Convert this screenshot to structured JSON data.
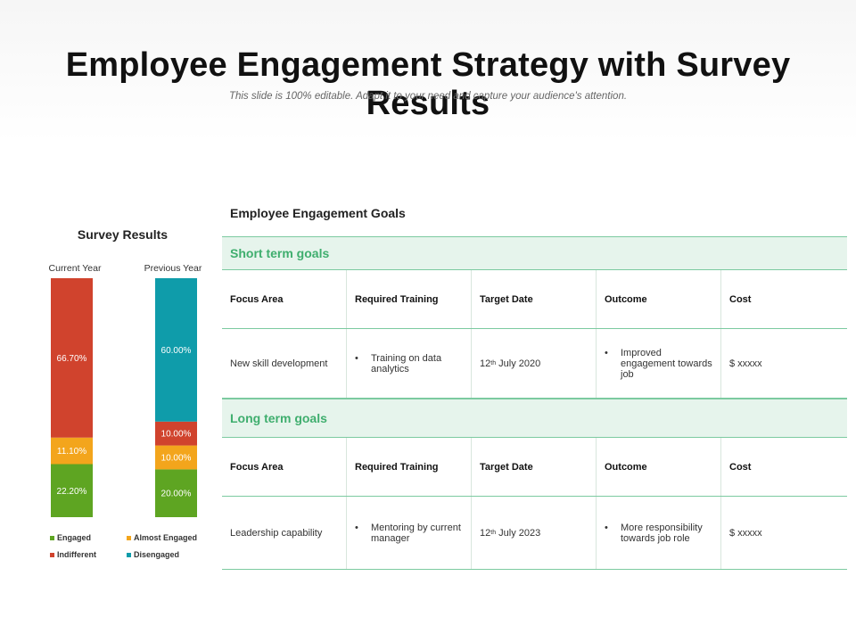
{
  "header": {
    "title": "Employee Engagement Strategy with Survey Results",
    "subtitle": "This slide is 100% editable. Adapt it to your need and capture your audience's attention."
  },
  "chart_data": {
    "type": "bar",
    "stacked": true,
    "normalized": true,
    "title": "Survey Results",
    "categories": [
      "Current Year",
      "Previous Year"
    ],
    "series": [
      {
        "name": "Engaged",
        "color": "#5ea522",
        "values": [
          22.2,
          20.0
        ],
        "labels": [
          "22.20%",
          "20.00%"
        ]
      },
      {
        "name": "Almost Engaged",
        "color": "#f3a51c",
        "values": [
          11.1,
          10.0
        ],
        "labels": [
          "11.10%",
          "10.00%"
        ]
      },
      {
        "name": "Indifferent",
        "color": "#d0432d",
        "values": [
          66.7,
          10.0
        ],
        "labels": [
          "66.70%",
          "10.00%"
        ]
      },
      {
        "name": "Disengaged",
        "color": "#0f9caa",
        "values": [
          0,
          60.0
        ],
        "labels": [
          "",
          "60.00%"
        ]
      }
    ],
    "ylim": [
      0,
      100
    ],
    "legend_position": "bottom"
  },
  "goals": {
    "heading": "Employee Engagement Goals",
    "columns": [
      "Focus Area",
      "Required Training",
      "Target Date",
      "Outcome",
      "Cost"
    ],
    "short_term": {
      "label": "Short term goals",
      "row": {
        "focus": "New skill development",
        "training": "Training on data analytics",
        "date_day": "12",
        "date_suffix": "th",
        "date_rest": " July 2020",
        "outcome": "Improved engagement towards job",
        "cost": "$ xxxxx"
      }
    },
    "long_term": {
      "label": "Long term goals",
      "row": {
        "focus": "Leadership capability",
        "training": "Mentoring by current manager",
        "date_day": "12",
        "date_suffix": "th",
        "date_rest": " July 2023",
        "outcome": "More responsibility towards job role",
        "cost": "$ xxxxx"
      }
    },
    "bullet_char": "•"
  }
}
